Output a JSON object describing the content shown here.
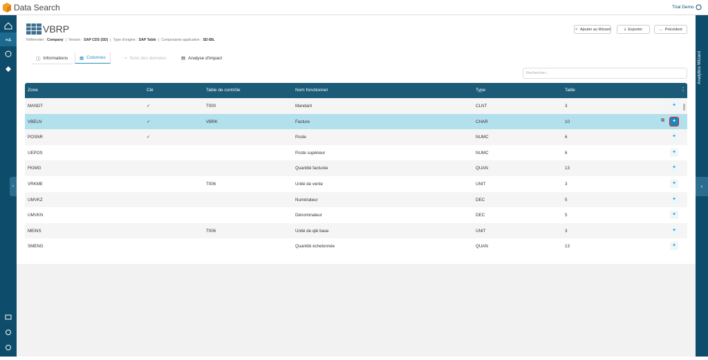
{
  "app": {
    "name": "Data Search",
    "user": "Trial Demo"
  },
  "right_panel": {
    "title": "Analytics Wizard"
  },
  "header": {
    "title": "VBRP",
    "meta": [
      {
        "label": "Référentiel :",
        "value": "Company"
      },
      {
        "label": "Version :",
        "value": "SAP CDS (SD)"
      },
      {
        "label": "Type d'origine :",
        "value": "SAP Table"
      },
      {
        "label": "Composante applicative :",
        "value": "SD-BIL"
      }
    ],
    "buttons": [
      "Ajouter au Wizard",
      "Exporter",
      "Précédent"
    ]
  },
  "tabs": [
    "Informations",
    "Colonnes",
    "Suivi des données",
    "Analyse d'impact"
  ],
  "search": {
    "placeholder": "Rechercher..."
  },
  "table": {
    "columns": [
      "Zone",
      "Clé",
      "Table de contrôle",
      "Nom fonctionnel",
      "Type",
      "Taille"
    ],
    "rows": [
      {
        "zone": "MANDT",
        "key": "✓",
        "check_table": "T000",
        "name": "Mandant",
        "type": "CLNT",
        "size": "3"
      },
      {
        "zone": "VBELN",
        "key": "✓",
        "check_table": "VBRK",
        "name": "Facture",
        "type": "CHAR",
        "size": "10"
      },
      {
        "zone": "POSNR",
        "key": "✓",
        "name": "Poste",
        "type": "NUMC",
        "size": "6"
      },
      {
        "zone": "UEPOS",
        "name": "Poste supérieur",
        "type": "NUMC",
        "size": "6"
      },
      {
        "zone": "FKIMG",
        "name": "Quantité facturée",
        "type": "QUAN",
        "size": "13"
      },
      {
        "zone": "VRKME",
        "check_table": "T006",
        "name": "Unité de vente",
        "type": "UNIT",
        "size": "3"
      },
      {
        "zone": "UMVKZ",
        "name": "Numérateur",
        "type": "DEC",
        "size": "5"
      },
      {
        "zone": "UMVKN",
        "name": "Dénominateur",
        "type": "DEC",
        "size": "5"
      },
      {
        "zone": "MEINS",
        "check_table": "T006",
        "name": "Unité de qté base",
        "type": "UNIT",
        "size": "3"
      },
      {
        "zone": "SMENG",
        "name": "Quantité échelonnée",
        "type": "QUAN",
        "size": "13"
      }
    ]
  }
}
